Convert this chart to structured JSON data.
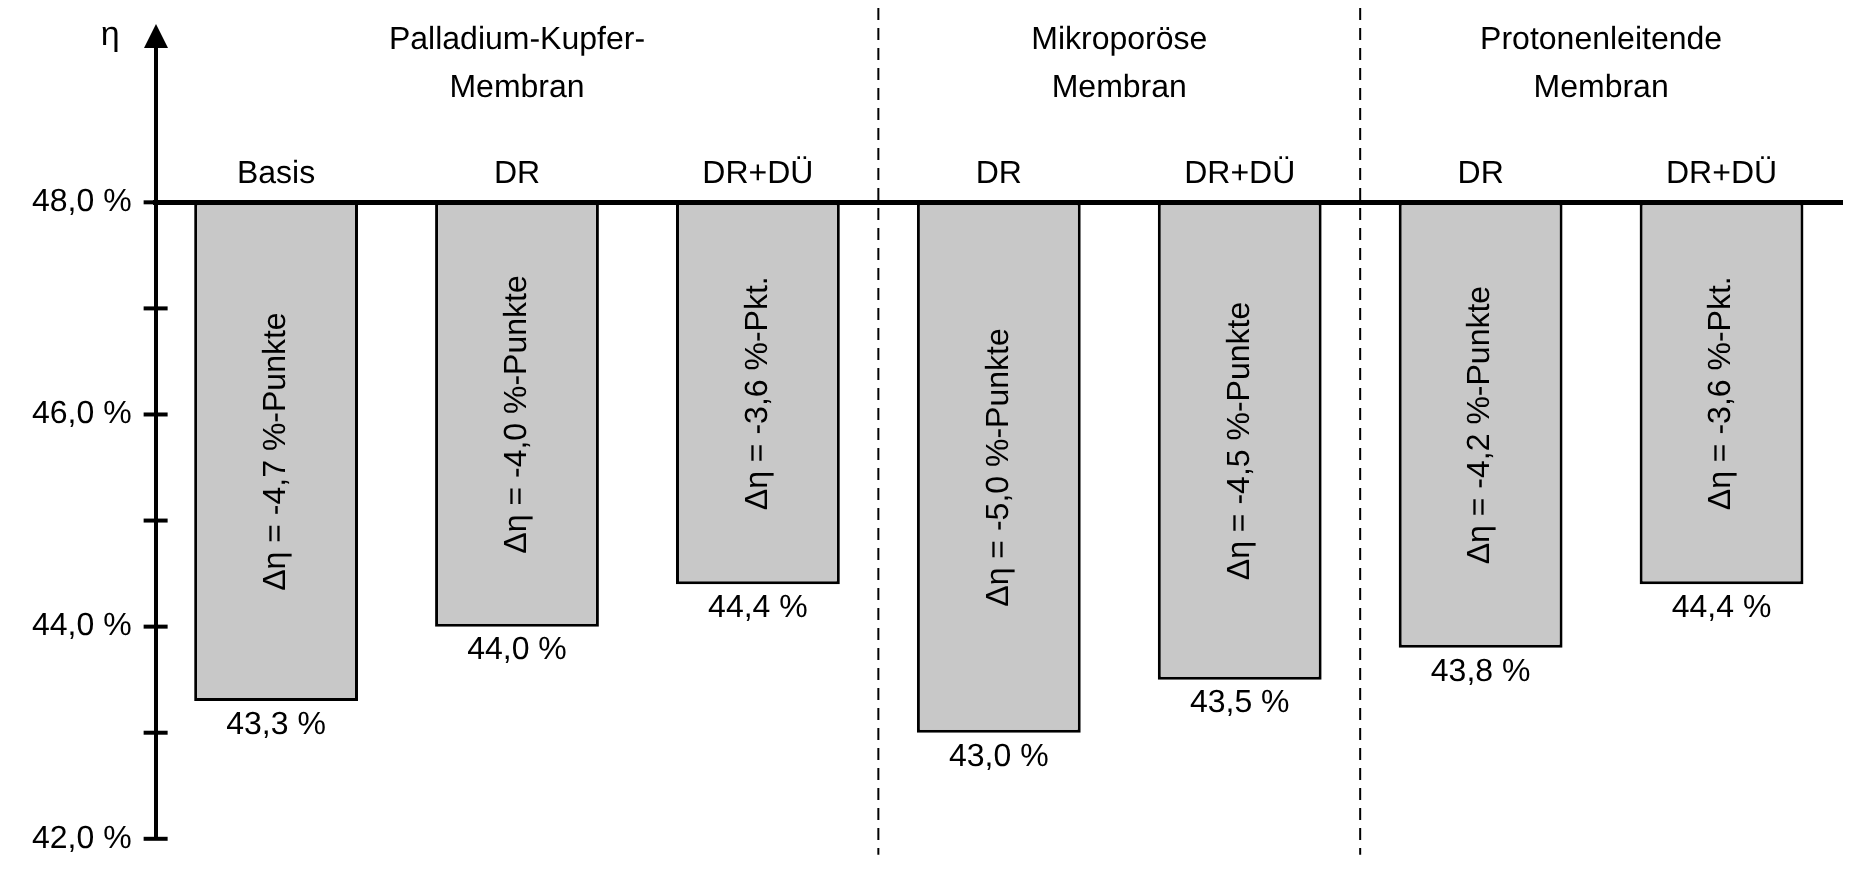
{
  "chart_data": {
    "type": "bar",
    "ylabel": "η",
    "categories": [
      "Basis",
      "DR",
      "DR+DÜ",
      "DR",
      "DR+DÜ",
      "DR",
      "DR+DÜ"
    ],
    "base": [
      48,
      48,
      48,
      48,
      48,
      48,
      48
    ],
    "values": [
      -4.7,
      -4.0,
      -3.6,
      -5.0,
      -4.5,
      -4.2,
      -3.6
    ],
    "color": "#c8c8c8",
    "value_labels": [
      "Δη = -4,7 %-Punkte",
      "Δη = -4,0 %-Punkte",
      "Δη = -3,6 %-Pkt.",
      "Δη = -5,0 %-Punkte",
      "Δη = -4,5 %-Punkte",
      "Δη = -4,2 %-Punkte",
      "Δη = -3,6 %-Pkt."
    ],
    "ylim": [
      42,
      49.5
    ],
    "yticks": [
      {
        "value": 42,
        "label": "42,0 %"
      },
      {
        "value": 43,
        "label": null
      },
      {
        "value": 44,
        "label": "44,0 %"
      },
      {
        "value": 45,
        "label": null
      },
      {
        "value": 46,
        "label": "46,0 %"
      },
      {
        "value": 47,
        "label": null
      },
      {
        "value": 48,
        "label": "48,0 %"
      }
    ],
    "grid": false,
    "legend": false,
    "annotations": [
      "Palladium-Kupfer-\nMembran",
      "Mikroporöse\nMembran",
      "Protonenleitende\nMembran",
      "43,3 %",
      "44,0 %",
      "44,4 %",
      "43,0 %",
      "43,5 %",
      "43,8 %",
      "44,4 %"
    ]
  }
}
